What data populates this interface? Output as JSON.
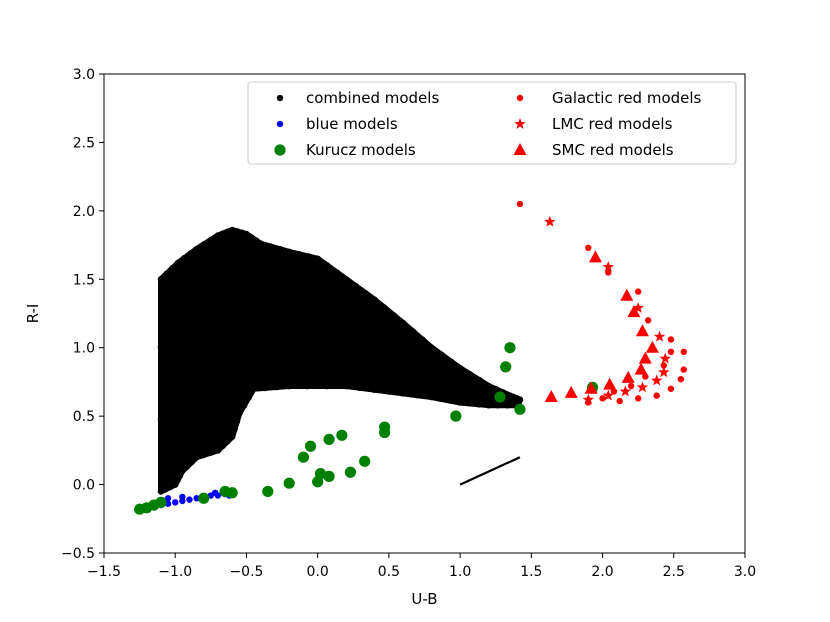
{
  "chart_data": {
    "type": "scatter",
    "title": "",
    "xlabel": "U-B",
    "ylabel": "R-I",
    "xlim": [
      -1.5,
      3.0
    ],
    "ylim": [
      -0.5,
      3.0
    ],
    "xticks": [
      "−1.5",
      "−1.0",
      "−0.5",
      "0.0",
      "0.5",
      "1.0",
      "1.5",
      "2.0",
      "2.5",
      "3.0"
    ],
    "yticks": [
      "−0.5",
      "0.0",
      "0.5",
      "1.0",
      "1.5",
      "2.0",
      "2.5",
      "3.0"
    ],
    "grid": false,
    "legend_position": "upper-right",
    "combined_region": {
      "name": "combined models",
      "color": "#000000",
      "boundary": [
        [
          -1.1,
          -0.05
        ],
        [
          -1.1,
          1.5
        ],
        [
          -0.98,
          1.62
        ],
        [
          -0.85,
          1.72
        ],
        [
          -0.7,
          1.82
        ],
        [
          -0.6,
          1.86
        ],
        [
          -0.5,
          1.83
        ],
        [
          -0.4,
          1.76
        ],
        [
          -0.2,
          1.7
        ],
        [
          0.0,
          1.65
        ],
        [
          0.2,
          1.5
        ],
        [
          0.4,
          1.35
        ],
        [
          0.6,
          1.18
        ],
        [
          0.8,
          1.0
        ],
        [
          1.0,
          0.85
        ],
        [
          1.2,
          0.72
        ],
        [
          1.35,
          0.65
        ],
        [
          1.42,
          0.62
        ],
        [
          1.4,
          0.58
        ],
        [
          1.2,
          0.58
        ],
        [
          1.0,
          0.6
        ],
        [
          0.8,
          0.64
        ],
        [
          0.5,
          0.68
        ],
        [
          0.2,
          0.72
        ],
        [
          -0.2,
          0.72
        ],
        [
          -0.45,
          0.7
        ],
        [
          -0.55,
          0.52
        ],
        [
          -0.6,
          0.35
        ],
        [
          -0.7,
          0.25
        ],
        [
          -0.85,
          0.2
        ],
        [
          -0.95,
          0.1
        ],
        [
          -1.0,
          0.0
        ]
      ]
    },
    "series": [
      {
        "name": "blue models",
        "color": "#0000ff",
        "marker": "small-dot",
        "points": [
          [
            -1.25,
            -0.18
          ],
          [
            -1.2,
            -0.17
          ],
          [
            -1.15,
            -0.16
          ],
          [
            -1.1,
            -0.15
          ],
          [
            -1.05,
            -0.14
          ],
          [
            -1.0,
            -0.13
          ],
          [
            -0.95,
            -0.12
          ],
          [
            -0.9,
            -0.11
          ],
          [
            -0.85,
            -0.1
          ],
          [
            -0.8,
            -0.09
          ],
          [
            -0.75,
            -0.08
          ],
          [
            -0.7,
            -0.08
          ],
          [
            -0.65,
            -0.07
          ],
          [
            -0.6,
            -0.06
          ],
          [
            -1.05,
            -0.1
          ],
          [
            -1.08,
            -0.12
          ],
          [
            -0.95,
            -0.09
          ],
          [
            -0.72,
            -0.06
          ],
          [
            -0.62,
            -0.08
          ]
        ]
      },
      {
        "name": "Kurucz models",
        "color": "#008000",
        "marker": "big-dot",
        "points": [
          [
            -1.25,
            -0.18
          ],
          [
            -1.2,
            -0.17
          ],
          [
            -1.15,
            -0.15
          ],
          [
            -1.1,
            -0.13
          ],
          [
            -0.8,
            -0.1
          ],
          [
            -0.65,
            -0.05
          ],
          [
            -0.6,
            -0.06
          ],
          [
            -0.35,
            -0.05
          ],
          [
            -0.2,
            0.01
          ],
          [
            -0.1,
            0.2
          ],
          [
            -0.05,
            0.28
          ],
          [
            0.0,
            0.02
          ],
          [
            0.02,
            0.08
          ],
          [
            0.08,
            0.06
          ],
          [
            0.08,
            0.33
          ],
          [
            0.17,
            0.36
          ],
          [
            0.23,
            0.09
          ],
          [
            0.33,
            0.17
          ],
          [
            0.47,
            0.38
          ],
          [
            0.47,
            0.42
          ],
          [
            0.97,
            0.5
          ],
          [
            1.28,
            0.64
          ],
          [
            1.32,
            0.86
          ],
          [
            1.35,
            1.0
          ],
          [
            1.42,
            0.55
          ],
          [
            1.93,
            0.71
          ]
        ]
      },
      {
        "name": "Galactic red models",
        "color": "#ff0000",
        "marker": "small-dot",
        "points": [
          [
            1.42,
            2.05
          ],
          [
            1.9,
            1.73
          ],
          [
            2.04,
            1.55
          ],
          [
            2.25,
            1.41
          ],
          [
            2.32,
            1.2
          ],
          [
            2.48,
            1.06
          ],
          [
            2.48,
            0.97
          ],
          [
            2.57,
            0.97
          ],
          [
            2.57,
            0.84
          ],
          [
            2.55,
            0.77
          ],
          [
            2.48,
            0.7
          ],
          [
            2.38,
            0.65
          ],
          [
            2.25,
            0.63
          ],
          [
            2.12,
            0.61
          ],
          [
            2.0,
            0.63
          ],
          [
            1.9,
            0.6
          ],
          [
            2.08,
            0.68
          ],
          [
            2.2,
            0.72
          ],
          [
            2.3,
            0.79
          ],
          [
            2.43,
            0.87
          ]
        ]
      },
      {
        "name": "LMC red models",
        "color": "#ff0000",
        "marker": "star",
        "points": [
          [
            1.63,
            1.92
          ],
          [
            2.04,
            1.59
          ],
          [
            2.25,
            1.29
          ],
          [
            2.4,
            1.08
          ],
          [
            2.44,
            0.92
          ],
          [
            2.43,
            0.82
          ],
          [
            2.38,
            0.76
          ],
          [
            2.28,
            0.71
          ],
          [
            2.16,
            0.68
          ],
          [
            2.04,
            0.65
          ],
          [
            1.9,
            0.62
          ]
        ]
      },
      {
        "name": "SMC red models",
        "color": "#ff0000",
        "marker": "triangle",
        "points": [
          [
            1.64,
            0.64
          ],
          [
            1.78,
            0.67
          ],
          [
            1.92,
            0.7
          ],
          [
            2.05,
            0.73
          ],
          [
            2.18,
            0.78
          ],
          [
            2.27,
            0.84
          ],
          [
            2.3,
            0.92
          ],
          [
            2.35,
            1.0
          ],
          [
            2.28,
            1.12
          ],
          [
            2.22,
            1.26
          ],
          [
            2.17,
            1.38
          ],
          [
            1.95,
            1.66
          ]
        ]
      }
    ],
    "reddening_vector": {
      "from": [
        1.0,
        0.0
      ],
      "to": [
        1.42,
        0.2
      ],
      "color": "#000000"
    },
    "legend": {
      "left_column": [
        {
          "label": "combined models",
          "marker": "small-dot",
          "color": "#000000"
        },
        {
          "label": "blue models",
          "marker": "small-dot",
          "color": "#0000ff"
        },
        {
          "label": "Kurucz models",
          "marker": "big-dot",
          "color": "#008000"
        }
      ],
      "right_column": [
        {
          "label": "Galactic red models",
          "marker": "small-dot",
          "color": "#ff0000"
        },
        {
          "label": "LMC red models",
          "marker": "star",
          "color": "#ff0000"
        },
        {
          "label": "SMC red models",
          "marker": "triangle",
          "color": "#ff0000"
        }
      ]
    }
  }
}
